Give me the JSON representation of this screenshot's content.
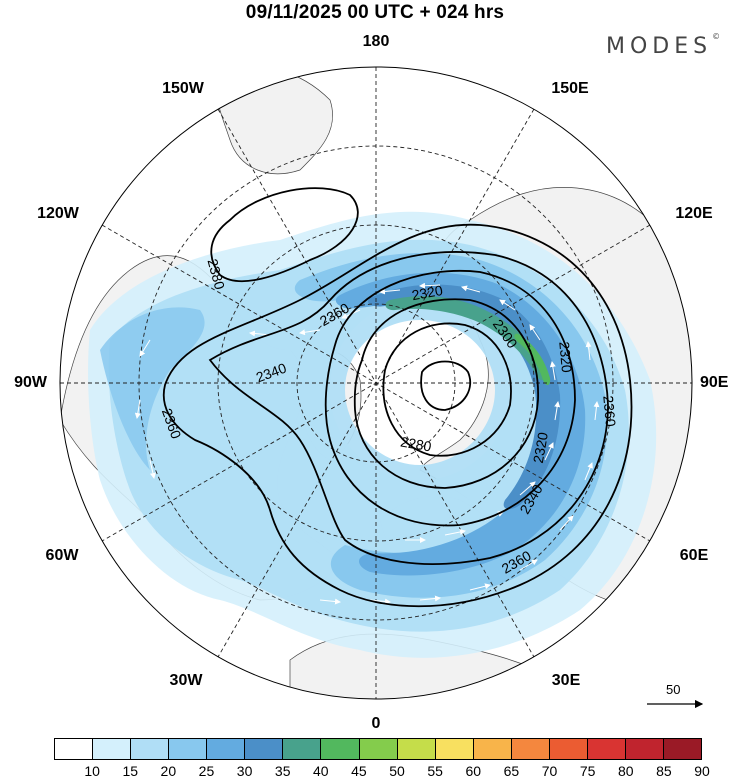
{
  "header": {
    "title": "09/11/2025  00 UTC  + 024 hrs",
    "brand": "MODES",
    "brand_mark": "©"
  },
  "map": {
    "projection": "north-polar-stereographic",
    "longitude_labels": [
      "180",
      "150E",
      "120E",
      "90E",
      "60E",
      "30E",
      "0",
      "30W",
      "60W",
      "90W",
      "120W",
      "150W"
    ],
    "land_color": "#f2f2f2",
    "ocean_color": "#ffffff",
    "contour_labels": [
      "2380",
      "2360",
      "2340",
      "2360",
      "2320",
      "2300",
      "2320",
      "2280",
      "2360",
      "2320",
      "2340",
      "2360"
    ],
    "scale_vector": {
      "label": "50",
      "units_value": 50
    }
  },
  "colorbar": {
    "labels": [
      "10",
      "15",
      "20",
      "25",
      "30",
      "35",
      "40",
      "45",
      "50",
      "55",
      "60",
      "65",
      "70",
      "75",
      "80",
      "85",
      "90"
    ],
    "colors": [
      "#ffffff",
      "#d4f0fc",
      "#b0def6",
      "#88c8ee",
      "#63abe0",
      "#4b8fc8",
      "#48a28c",
      "#52b85e",
      "#84cc4c",
      "#c5dd4a",
      "#f8e060",
      "#f8b44a",
      "#f4873e",
      "#eb5c32",
      "#d93432",
      "#c0242e",
      "#9a1a26"
    ]
  }
}
